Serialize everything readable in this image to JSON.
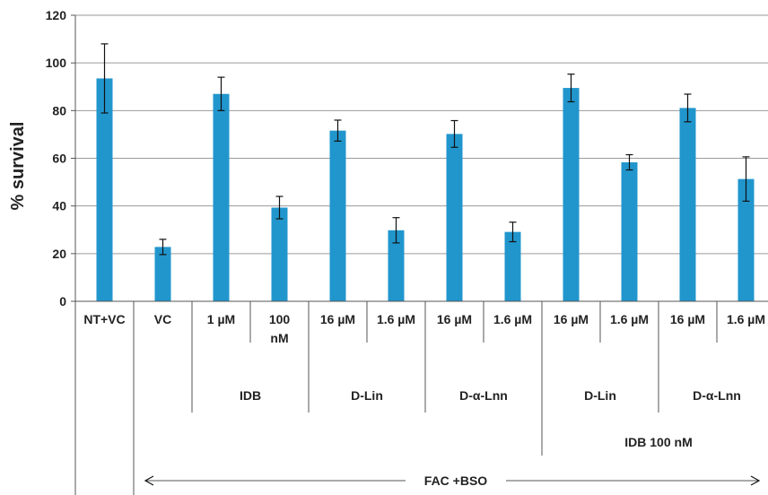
{
  "chart_data": {
    "type": "bar",
    "ylabel": "% survival",
    "ylim": [
      0,
      120
    ],
    "yticks": [
      0,
      20,
      40,
      60,
      80,
      100,
      120
    ],
    "grid": true,
    "bar_color": "#2196cd",
    "categories": [
      "NT+VC",
      "VC",
      "1 µM",
      "100 nM",
      "16 µM",
      "1.6 µM",
      "16 µM",
      "1.6 µM",
      "16 µM",
      "1.6 µM",
      "16 µM",
      "1.6 µM"
    ],
    "category_lines": [
      [
        "NT+VC"
      ],
      [
        "VC"
      ],
      [
        "1 µM"
      ],
      [
        "100",
        "nM"
      ],
      [
        "16 µM"
      ],
      [
        "1.6 µM"
      ],
      [
        "16 µM"
      ],
      [
        "1.6 µM"
      ],
      [
        "16 µM"
      ],
      [
        "1.6 µM"
      ],
      [
        "16 µM"
      ],
      [
        "1.6 µM"
      ]
    ],
    "values": [
      93.5,
      22.8,
      87.0,
      39.3,
      71.6,
      29.8,
      70.2,
      29.1,
      89.5,
      58.3,
      81.1,
      51.3
    ],
    "errors": [
      14.5,
      3.2,
      7.0,
      4.7,
      4.4,
      5.3,
      5.6,
      4.1,
      5.8,
      3.2,
      5.8,
      9.3
    ],
    "groups_level1": [
      {
        "label": "IDB",
        "from": 2,
        "to": 3
      },
      {
        "label": "D-Lin",
        "from": 4,
        "to": 5
      },
      {
        "label": "D-α-Lnn",
        "from": 6,
        "to": 7
      },
      {
        "label": "D-Lin",
        "from": 8,
        "to": 9
      },
      {
        "label": "D-α-Lnn",
        "from": 10,
        "to": 11
      }
    ],
    "groups_level2": [
      {
        "label": "IDB 100 nM",
        "from": 8,
        "to": 11
      }
    ],
    "groups_level3": [
      {
        "label": "FAC +BSO",
        "from": 1,
        "to": 11
      }
    ]
  }
}
